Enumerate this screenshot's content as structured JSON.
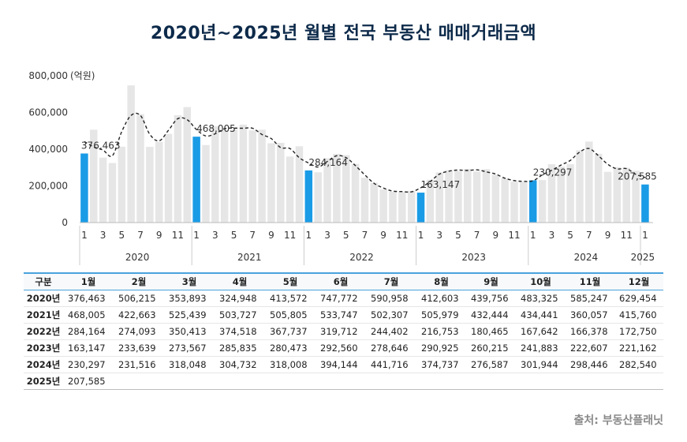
{
  "title": "2020년~2025년 월별 전국 부동산 매매거래금액",
  "source": "출처: 부동산플래닛",
  "chart_data": {
    "type": "bar",
    "unit_label": "(억원)",
    "ylim": [
      0,
      800000
    ],
    "yticks": [
      0,
      200000,
      400000,
      600000,
      800000
    ],
    "ytick_labels": [
      "0",
      "200,000",
      "400,000",
      "600,000",
      "800,000"
    ],
    "years": [
      "2020",
      "2021",
      "2022",
      "2023",
      "2024",
      "2025"
    ],
    "month_tick_labels": [
      "1",
      "3",
      "5",
      "7",
      "9",
      "11"
    ],
    "highlight_labels": [
      "376,463",
      "468,005",
      "284,164",
      "163,147",
      "230,297",
      "207,585"
    ],
    "colors": {
      "bar": "#e6e6e6",
      "highlight": "#1a9be6",
      "trend": "#222222"
    },
    "values": [
      [
        376463,
        506215,
        353893,
        324948,
        413572,
        747772,
        590958,
        412603,
        439756,
        483325,
        585247,
        629454
      ],
      [
        468005,
        422663,
        525439,
        503727,
        505805,
        533747,
        502307,
        505979,
        432444,
        434441,
        360057,
        415760
      ],
      [
        284164,
        274093,
        350413,
        374518,
        367737,
        319712,
        244402,
        216753,
        180465,
        167642,
        166378,
        172750
      ],
      [
        163147,
        233639,
        273567,
        285835,
        280473,
        292560,
        278646,
        290925,
        260215,
        241883,
        222607,
        221162
      ],
      [
        230297,
        231516,
        318048,
        304732,
        318008,
        394144,
        441716,
        374737,
        276587,
        301944,
        298446,
        282540
      ],
      [
        207585
      ]
    ]
  },
  "table": {
    "header": [
      "구분",
      "1월",
      "2월",
      "3월",
      "4월",
      "5월",
      "6월",
      "7월",
      "8월",
      "9월",
      "10월",
      "11월",
      "12월"
    ],
    "rows": [
      [
        "2020년",
        "376,463",
        "506,215",
        "353,893",
        "324,948",
        "413,572",
        "747,772",
        "590,958",
        "412,603",
        "439,756",
        "483,325",
        "585,247",
        "629,454"
      ],
      [
        "2021년",
        "468,005",
        "422,663",
        "525,439",
        "503,727",
        "505,805",
        "533,747",
        "502,307",
        "505,979",
        "432,444",
        "434,441",
        "360,057",
        "415,760"
      ],
      [
        "2022년",
        "284,164",
        "274,093",
        "350,413",
        "374,518",
        "367,737",
        "319,712",
        "244,402",
        "216,753",
        "180,465",
        "167,642",
        "166,378",
        "172,750"
      ],
      [
        "2023년",
        "163,147",
        "233,639",
        "273,567",
        "285,835",
        "280,473",
        "292,560",
        "278,646",
        "290,925",
        "260,215",
        "241,883",
        "222,607",
        "221,162"
      ],
      [
        "2024년",
        "230,297",
        "231,516",
        "318,048",
        "304,732",
        "318,008",
        "394,144",
        "441,716",
        "374,737",
        "276,587",
        "301,944",
        "298,446",
        "282,540"
      ],
      [
        "2025년",
        "207,585",
        "",
        "",
        "",
        "",
        "",
        "",
        "",
        "",
        "",
        "",
        ""
      ]
    ]
  }
}
